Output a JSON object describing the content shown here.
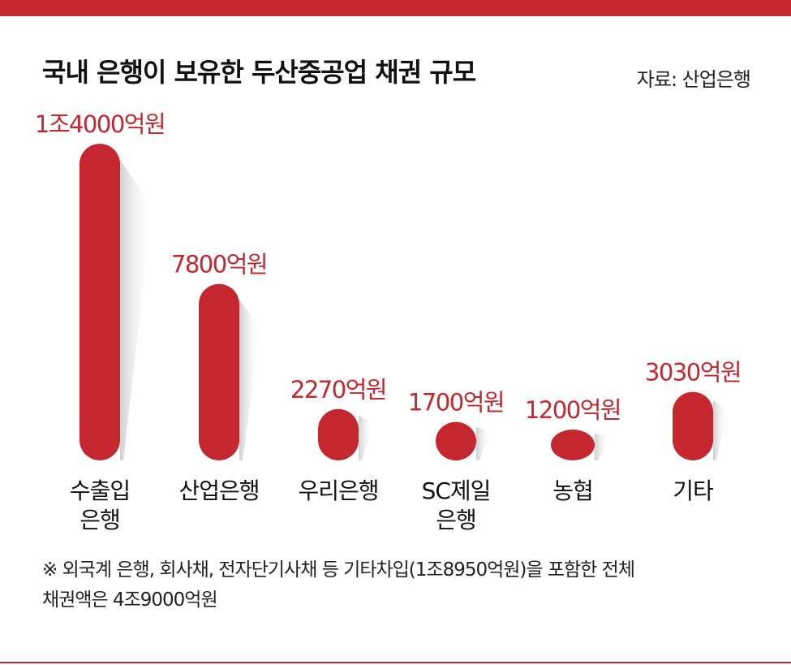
{
  "title": "국내 은행이 보유한 두산중공업 채권 규모",
  "source": "자료: 산업은행",
  "note_line1": "※ 외국계 은행, 회사채, 전자단기사채 등 기타차입(1조8950억원)을 포함한 전체",
  "note_line2": "채권액은 4조9000억원",
  "colors": {
    "accent": "#c4272f",
    "text": "#111111"
  },
  "chart_data": {
    "type": "bar",
    "title": "국내 은행이 보유한 두산중공업 채권 규모",
    "xlabel": "",
    "ylabel": "",
    "unit": "억원",
    "categories": [
      {
        "lines": [
          "수출입",
          "은행"
        ]
      },
      {
        "lines": [
          "산업은행"
        ]
      },
      {
        "lines": [
          "우리은행"
        ]
      },
      {
        "lines": [
          "SC제일",
          "은행"
        ]
      },
      {
        "lines": [
          "농협"
        ]
      },
      {
        "lines": [
          "기타"
        ]
      }
    ],
    "values": [
      14000,
      7800,
      2270,
      1700,
      1200,
      3030
    ],
    "labels": [
      "1조4000억원",
      "7800억원",
      "2270억원",
      "1700억원",
      "1200억원",
      "3030억원"
    ],
    "grid": false,
    "legend": "none"
  }
}
